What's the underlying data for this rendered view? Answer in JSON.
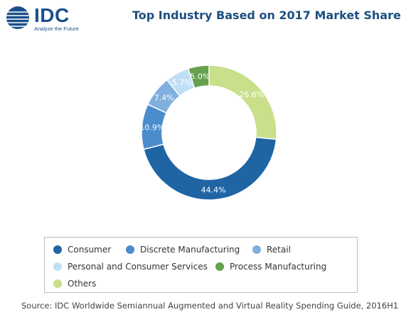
{
  "logo": {
    "word": "IDC",
    "tagline": "Analyze the Future",
    "brand_color": "#1a4f8b"
  },
  "chart_data": {
    "type": "pie",
    "style": "donut",
    "title": "Top Industry Based on 2017 Market Share",
    "legend_position": "bottom",
    "slices": [
      {
        "name": "Others",
        "value": 26.6,
        "label": "26.6%",
        "color": "#c9df8a"
      },
      {
        "name": "Consumer",
        "value": 44.4,
        "label": "44.4%",
        "color": "#1f65a4"
      },
      {
        "name": "Discrete Manufacturing",
        "value": 10.9,
        "label": "10.9%",
        "color": "#4a8ccc"
      },
      {
        "name": "Retail",
        "value": 7.4,
        "label": "7.4%",
        "color": "#7fb0de"
      },
      {
        "name": "Personal and Consumer Services",
        "value": 5.7,
        "label": "5.7%",
        "color": "#bfdff5"
      },
      {
        "name": "Process Manufacturing",
        "value": 5.0,
        "label": "5.0%",
        "color": "#64a04d"
      }
    ],
    "legend": [
      {
        "name": "Consumer",
        "color": "#1f65a4"
      },
      {
        "name": "Discrete Manufacturing",
        "color": "#4a8ccc"
      },
      {
        "name": "Retail",
        "color": "#7fb0de"
      },
      {
        "name": "Personal and Consumer Services",
        "color": "#bfdff5"
      },
      {
        "name": "Process Manufacturing",
        "color": "#64a04d"
      },
      {
        "name": "Others",
        "color": "#c9df8a"
      }
    ]
  },
  "source": "Source: IDC Worldwide Semiannual Augmented and Virtual Reality Spending Guide, 2016H1"
}
